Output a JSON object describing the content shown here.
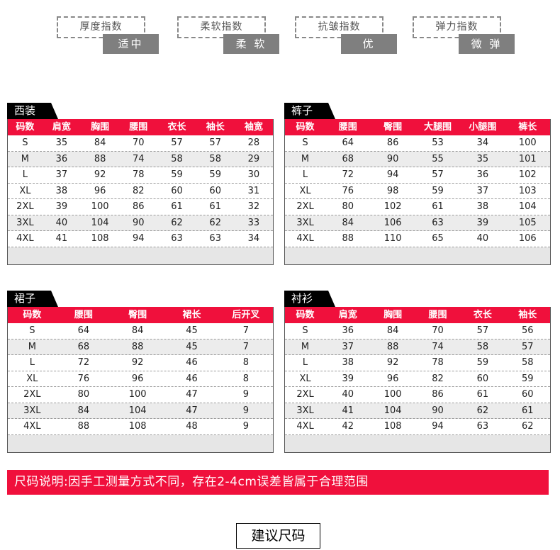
{
  "indices": [
    {
      "label": "厚度指数",
      "value": "适中"
    },
    {
      "label": "柔软指数",
      "value": "柔 软"
    },
    {
      "label": "抗皱指数",
      "value": "优"
    },
    {
      "label": "弹力指数",
      "value": "微 弹"
    }
  ],
  "tables": [
    {
      "title": "西装",
      "headers": [
        "码数",
        "肩宽",
        "胸围",
        "腰围",
        "衣长",
        "袖长",
        "袖宽"
      ],
      "rows": [
        [
          "S",
          "35",
          "84",
          "70",
          "57",
          "57",
          "28"
        ],
        [
          "M",
          "36",
          "88",
          "74",
          "58",
          "58",
          "29"
        ],
        [
          "L",
          "37",
          "92",
          "78",
          "59",
          "59",
          "30"
        ],
        [
          "XL",
          "38",
          "96",
          "82",
          "60",
          "60",
          "31"
        ],
        [
          "2XL",
          "39",
          "100",
          "86",
          "61",
          "61",
          "32"
        ],
        [
          "3XL",
          "40",
          "104",
          "90",
          "62",
          "62",
          "33"
        ],
        [
          "4XL",
          "41",
          "108",
          "94",
          "63",
          "63",
          "34"
        ]
      ]
    },
    {
      "title": "裤子",
      "headers": [
        "码数",
        "腰围",
        "臀围",
        "大腿围",
        "小腿围",
        "裤长"
      ],
      "rows": [
        [
          "S",
          "64",
          "86",
          "53",
          "34",
          "100"
        ],
        [
          "M",
          "68",
          "90",
          "55",
          "35",
          "101"
        ],
        [
          "L",
          "72",
          "94",
          "57",
          "36",
          "102"
        ],
        [
          "XL",
          "76",
          "98",
          "59",
          "37",
          "103"
        ],
        [
          "2XL",
          "80",
          "102",
          "61",
          "38",
          "104"
        ],
        [
          "3XL",
          "84",
          "106",
          "63",
          "39",
          "105"
        ],
        [
          "4XL",
          "88",
          "110",
          "65",
          "40",
          "106"
        ]
      ]
    },
    {
      "title": "裙子",
      "headers": [
        "码数",
        "腰围",
        "臀围",
        "裙长",
        "后开叉"
      ],
      "rows": [
        [
          "S",
          "64",
          "84",
          "45",
          "7"
        ],
        [
          "M",
          "68",
          "88",
          "45",
          "7"
        ],
        [
          "L",
          "72",
          "92",
          "46",
          "8"
        ],
        [
          "XL",
          "76",
          "96",
          "46",
          "8"
        ],
        [
          "2XL",
          "80",
          "100",
          "47",
          "9"
        ],
        [
          "3XL",
          "84",
          "104",
          "47",
          "9"
        ],
        [
          "4XL",
          "88",
          "108",
          "48",
          "9"
        ]
      ]
    },
    {
      "title": "衬衫",
      "headers": [
        "码数",
        "肩宽",
        "胸围",
        "腰围",
        "衣长",
        "袖长"
      ],
      "rows": [
        [
          "S",
          "36",
          "84",
          "70",
          "57",
          "56"
        ],
        [
          "M",
          "37",
          "88",
          "74",
          "58",
          "57"
        ],
        [
          "L",
          "38",
          "92",
          "78",
          "59",
          "58"
        ],
        [
          "XL",
          "39",
          "96",
          "82",
          "60",
          "59"
        ],
        [
          "2XL",
          "40",
          "100",
          "86",
          "61",
          "60"
        ],
        [
          "3XL",
          "41",
          "104",
          "90",
          "62",
          "61"
        ],
        [
          "4XL",
          "42",
          "108",
          "94",
          "63",
          "62"
        ]
      ]
    }
  ],
  "note": "尺码说明:因手工测量方式不同，存在2-4cm误差皆属于合理范围",
  "button": "建议尺码",
  "colors": {
    "accent": "#f0103c",
    "index_value_bg": "#7f7f7f"
  }
}
